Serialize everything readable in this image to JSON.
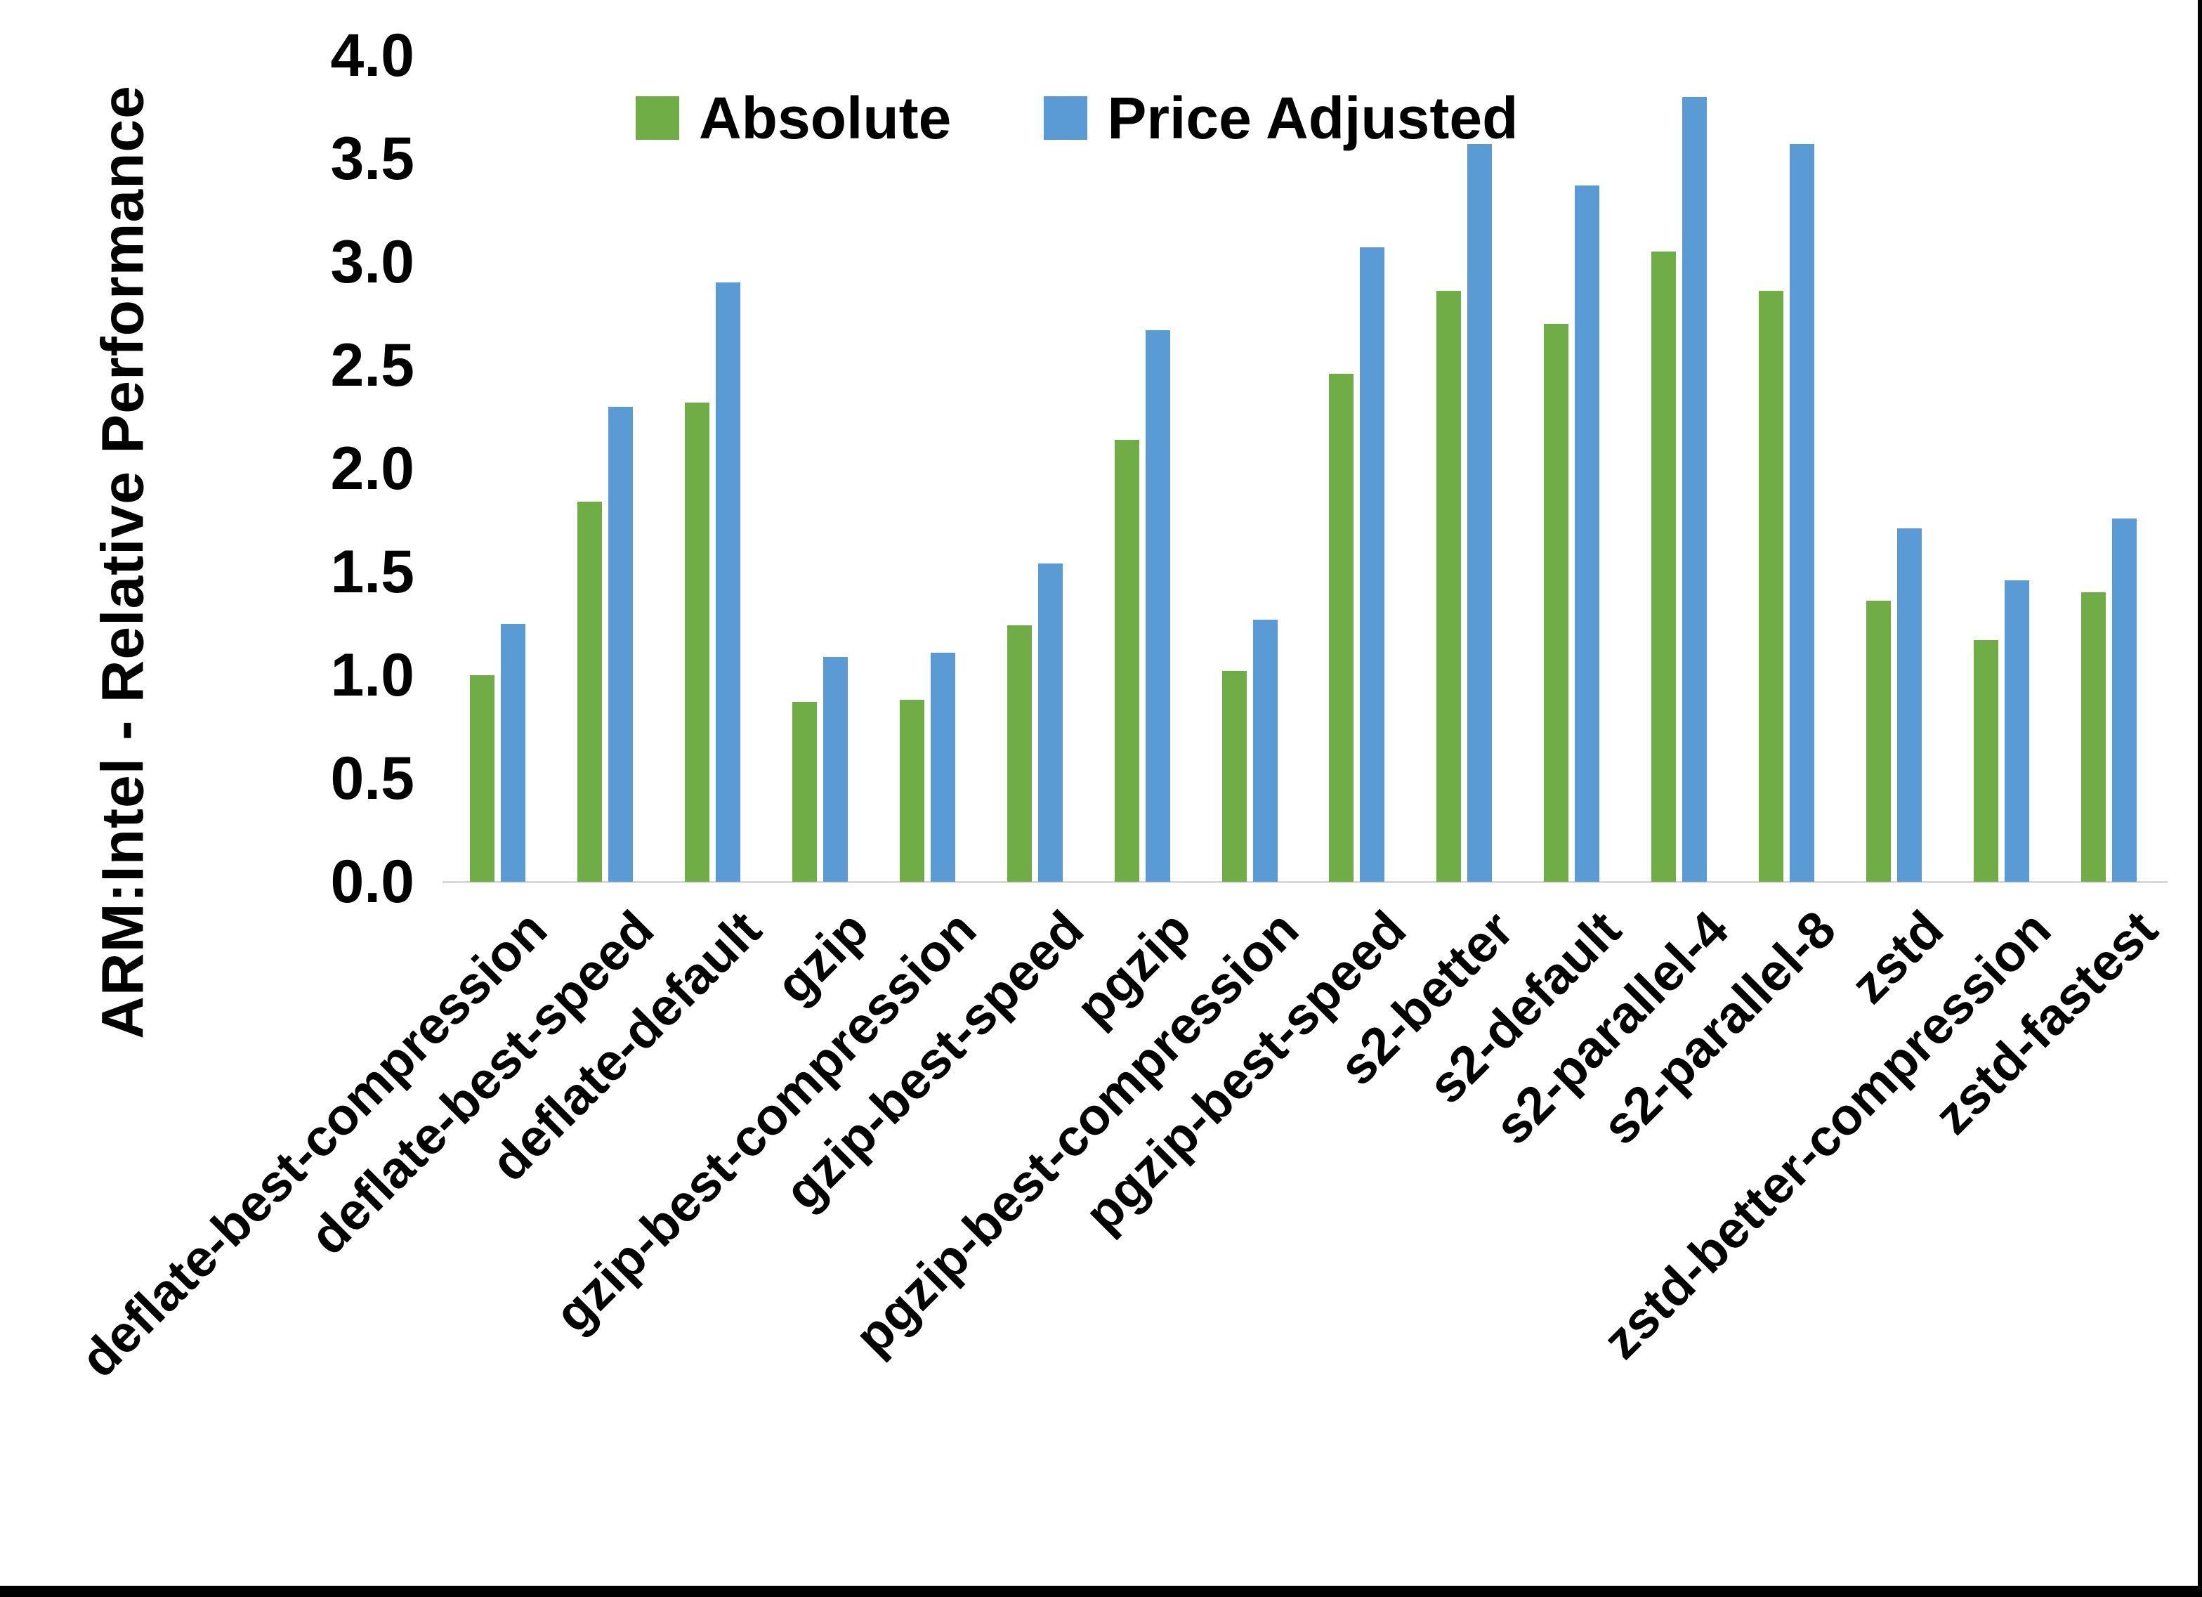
{
  "figure": {
    "background": "#ffffff",
    "border_color": "#000000",
    "axis_line_color": "#D9D9D9"
  },
  "legend": {
    "items": [
      {
        "label": "Absolute",
        "color": "#70AD47"
      },
      {
        "label": "Price Adjusted",
        "color": "#5B9BD5"
      }
    ]
  },
  "chart_data": {
    "type": "bar",
    "title": "",
    "xlabel": "",
    "ylabel": "ARM:Intel - Relative Performance",
    "ylim": [
      0.0,
      4.0
    ],
    "ytick_step": 0.5,
    "yticks": [
      "0.0",
      "0.5",
      "1.0",
      "1.5",
      "2.0",
      "2.5",
      "3.0",
      "3.5",
      "4.0"
    ],
    "grid": false,
    "legend_position": "top-center",
    "bar_colors": {
      "Absolute": "#70AD47",
      "Price Adjusted": "#5B9BD5"
    },
    "categories": [
      "deflate-best-compression",
      "deflate-best-speed",
      "deflate-default",
      "gzip",
      "gzip-best-compression",
      "gzip-best-speed",
      "pgzip",
      "pgzip-best-compression",
      "pgzip-best-speed",
      "s2-better",
      "s2-default",
      "s2-parallel-4",
      "s2-parallel-8",
      "zstd",
      "zstd-better-compression",
      "zstd-fastest"
    ],
    "series": [
      {
        "name": "Absolute",
        "color": "#70AD47",
        "values": [
          1.0,
          1.84,
          2.32,
          0.87,
          0.88,
          1.24,
          2.14,
          1.02,
          2.46,
          2.86,
          2.7,
          3.05,
          2.86,
          1.36,
          1.17,
          1.4
        ]
      },
      {
        "name": "Price Adjusted",
        "color": "#5B9BD5",
        "values": [
          1.25,
          2.3,
          2.9,
          1.09,
          1.11,
          1.54,
          2.67,
          1.27,
          3.07,
          3.57,
          3.37,
          3.8,
          3.57,
          1.71,
          1.46,
          1.76
        ]
      }
    ]
  }
}
